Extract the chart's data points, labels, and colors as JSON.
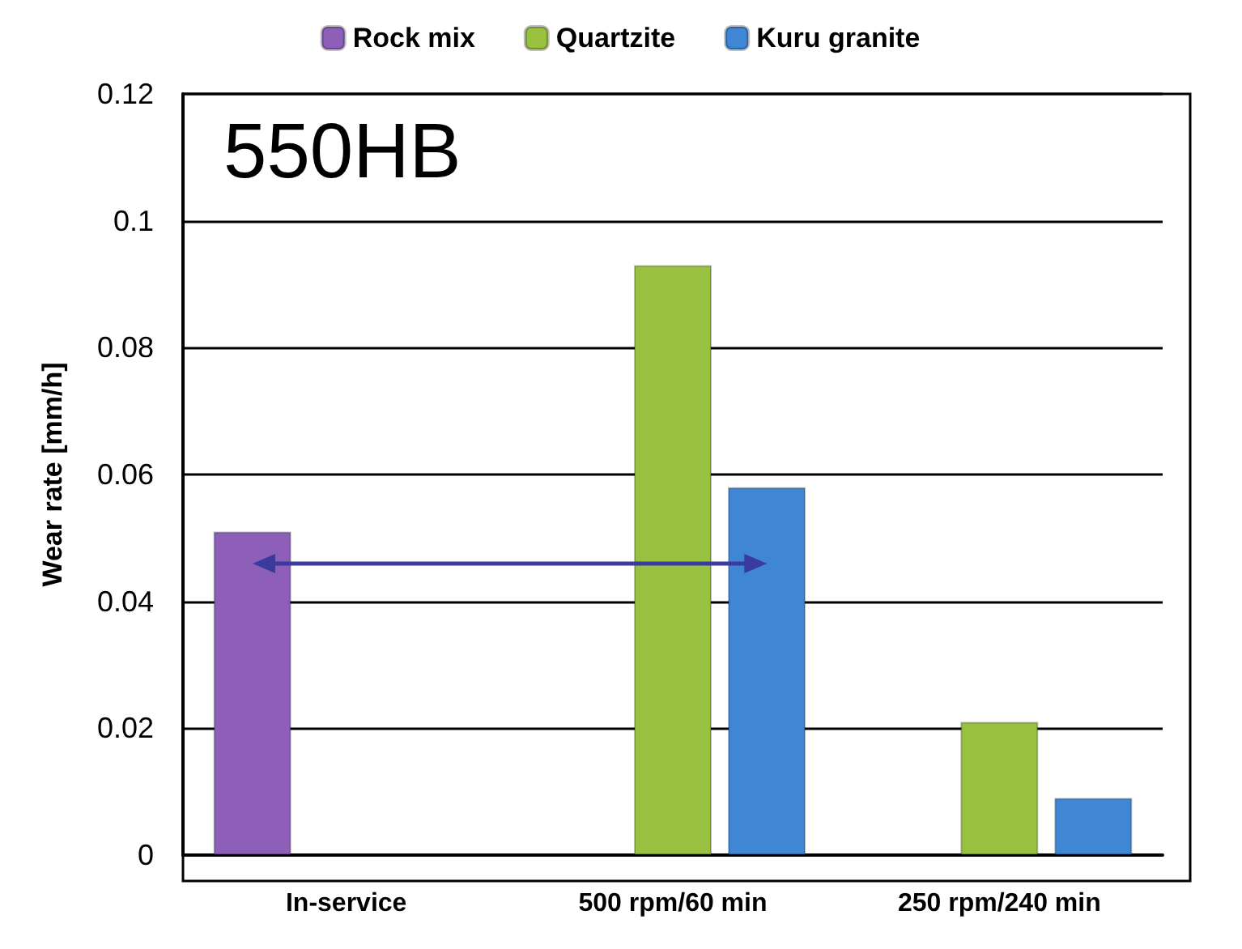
{
  "chart_data": {
    "type": "bar",
    "ylabel": "Wear rate [mm/h]",
    "annotations": [
      "550HB"
    ],
    "categories": [
      "In-service",
      "500 rpm/60 min",
      "250 rpm/240 min"
    ],
    "series": [
      {
        "name": "Rock mix",
        "color": "#8e5fb8",
        "values": [
          0.051,
          null,
          null
        ]
      },
      {
        "name": "Quartzite",
        "color": "#98c140",
        "values": [
          null,
          0.093,
          0.021
        ]
      },
      {
        "name": "Kuru granite",
        "color": "#3f87d4",
        "values": [
          null,
          0.058,
          0.009
        ]
      }
    ],
    "ylim": [
      0,
      0.12
    ],
    "yticks": [
      0,
      0.02,
      0.04,
      0.06,
      0.08,
      0.1,
      0.12
    ],
    "grid": "y",
    "legend": "top"
  }
}
